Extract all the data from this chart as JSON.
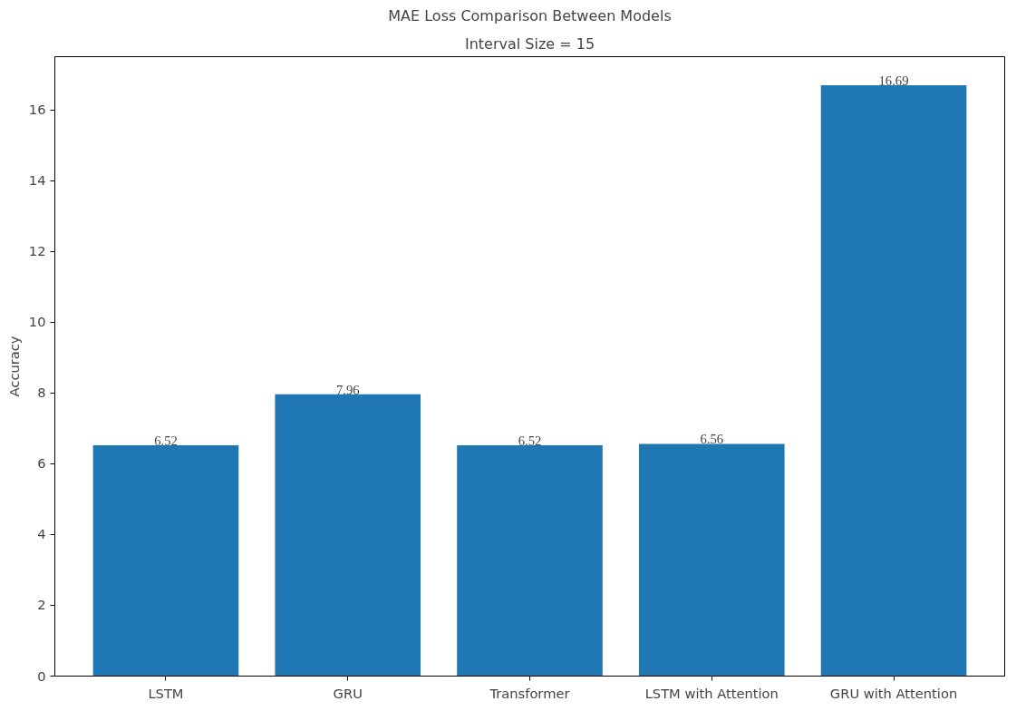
{
  "chart_data": {
    "type": "bar",
    "title": "MAE Loss Comparison Between Models",
    "subtitle": "Interval Size = 15",
    "ylabel": "Accuracy",
    "categories": [
      "LSTM",
      "GRU",
      "Transformer",
      "LSTM with Attention",
      "GRU with Attention"
    ],
    "values": [
      6.52,
      7.96,
      6.52,
      6.56,
      16.69
    ],
    "color": "#1f77b4",
    "ylim": [
      0,
      17.5
    ],
    "yticks": [
      0,
      2,
      4,
      6,
      8,
      10,
      12,
      14,
      16
    ],
    "grid": false,
    "data_labels": true
  }
}
